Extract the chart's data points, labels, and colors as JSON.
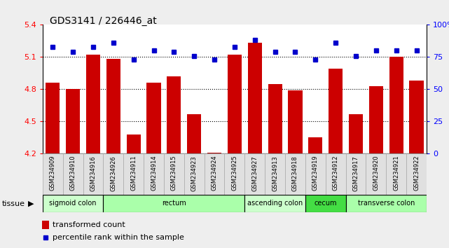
{
  "title": "GDS3141 / 226446_at",
  "samples": [
    "GSM234909",
    "GSM234910",
    "GSM234916",
    "GSM234926",
    "GSM234911",
    "GSM234914",
    "GSM234915",
    "GSM234923",
    "GSM234924",
    "GSM234925",
    "GSM234927",
    "GSM234913",
    "GSM234918",
    "GSM234919",
    "GSM234912",
    "GSM234917",
    "GSM234920",
    "GSM234921",
    "GSM234922"
  ],
  "bar_values": [
    4.86,
    4.8,
    5.12,
    5.08,
    4.38,
    4.86,
    4.92,
    4.57,
    4.21,
    5.12,
    5.23,
    4.85,
    4.79,
    4.35,
    4.99,
    4.57,
    4.83,
    5.1,
    4.88
  ],
  "percentile_values": [
    83,
    79,
    83,
    86,
    73,
    80,
    79,
    76,
    73,
    83,
    88,
    79,
    79,
    73,
    86,
    76,
    80,
    80,
    80
  ],
  "bar_color": "#cc0000",
  "dot_color": "#0000cc",
  "ylim_left": [
    4.2,
    5.4
  ],
  "ylim_right": [
    0,
    100
  ],
  "yticks_left": [
    4.2,
    4.5,
    4.8,
    5.1,
    5.4
  ],
  "ytick_labels_left": [
    "4.2",
    "4.5",
    "4.8",
    "5.1",
    "5.4"
  ],
  "yticks_right": [
    0,
    25,
    50,
    75,
    100
  ],
  "ytick_labels_right": [
    "0",
    "25",
    "50",
    "75",
    "100%"
  ],
  "grid_values": [
    4.5,
    4.8,
    5.1
  ],
  "tissue_groups": [
    {
      "label": "sigmoid colon",
      "start": 0,
      "end": 3,
      "color": "#ccffcc"
    },
    {
      "label": "rectum",
      "start": 3,
      "end": 10,
      "color": "#aaffaa"
    },
    {
      "label": "ascending colon",
      "start": 10,
      "end": 13,
      "color": "#ccffcc"
    },
    {
      "label": "cecum",
      "start": 13,
      "end": 15,
      "color": "#44dd44"
    },
    {
      "label": "transverse colon",
      "start": 15,
      "end": 19,
      "color": "#aaffaa"
    }
  ],
  "tissue_label": "tissue",
  "legend_bar_label": "transformed count",
  "legend_dot_label": "percentile rank within the sample",
  "background_color": "#eeeeee",
  "plot_bg_color": "#ffffff",
  "fig_width": 6.41,
  "fig_height": 3.54,
  "dpi": 100
}
